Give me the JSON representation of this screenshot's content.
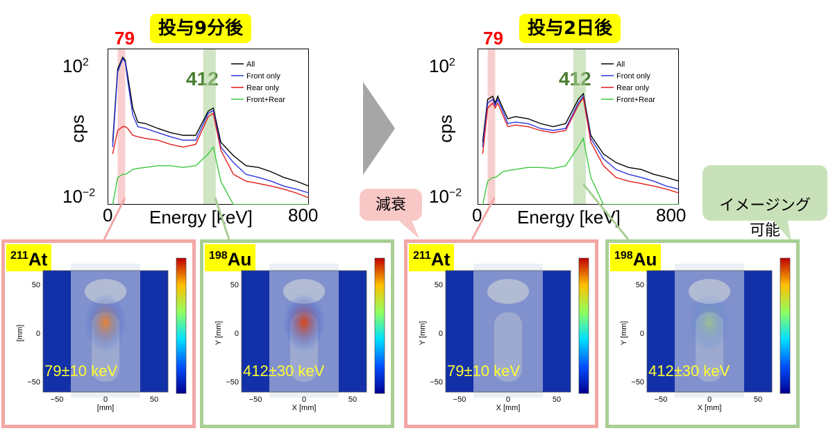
{
  "colors": {
    "all": "#000000",
    "front": "#2b36e0",
    "rear": "#e01a1a",
    "frontrear": "#3cc83c",
    "pink_band": "#f2a7a5",
    "green_band": "#a9cf93"
  },
  "left_block": {
    "time_label": "投与9分後",
    "peak_low": "79",
    "peak_high": "412"
  },
  "right_block": {
    "time_label": "投与2日後",
    "peak_low": "79",
    "peak_high": "412"
  },
  "arrow": "arrow-right-icon",
  "callouts": {
    "decay": "減衰",
    "imaging": "イメージング\n可能"
  },
  "panels": [
    {
      "isotope_mass": "211",
      "isotope": "At",
      "energy": "79±10 keV",
      "xlabel": "[mm]",
      "ylabel": "[mm]"
    },
    {
      "isotope_mass": "198",
      "isotope": "Au",
      "energy": "412±30 keV",
      "xlabel": "X [mm]",
      "ylabel": "Y [mm]"
    },
    {
      "isotope_mass": "211",
      "isotope": "At",
      "energy": "79±10 keV",
      "xlabel": "X [mm]",
      "ylabel": "Y [mm]"
    },
    {
      "isotope_mass": "198",
      "isotope": "Au",
      "energy": "412±30 keV",
      "xlabel": "X [mm]",
      "ylabel": "Y [mm]"
    }
  ],
  "chart_data": [
    {
      "type": "line",
      "title": "投与9分後",
      "xlabel": "Energy [keV]",
      "ylabel": "cps",
      "xlim": [
        0,
        800
      ],
      "ylim": [
        0.01,
        100
      ],
      "yscale": "log",
      "x_ticks": [
        "0",
        "800"
      ],
      "y_ticks": [
        "10^2",
        "10^-2"
      ],
      "legend_position": "top-right",
      "highlight_bands": [
        {
          "label": "79",
          "range": [
            40,
            70
          ]
        },
        {
          "label": "412",
          "range": [
            380,
            430
          ]
        }
      ],
      "x": [
        20,
        40,
        60,
        70,
        80,
        100,
        120,
        150,
        200,
        250,
        300,
        350,
        400,
        420,
        450,
        500,
        550,
        600,
        650,
        700,
        750,
        800
      ],
      "series": [
        {
          "name": "All",
          "values": [
            0.4,
            30,
            60,
            50,
            20,
            3,
            1.3,
            1.2,
            0.9,
            0.7,
            0.6,
            0.6,
            2.5,
            3.0,
            0.4,
            0.18,
            0.1,
            0.09,
            0.07,
            0.05,
            0.04,
            0.03
          ]
        },
        {
          "name": "Front only",
          "values": [
            0.3,
            25,
            55,
            45,
            15,
            2,
            1.0,
            0.9,
            0.7,
            0.55,
            0.45,
            0.45,
            2.2,
            2.6,
            0.3,
            0.12,
            0.06,
            0.05,
            0.04,
            0.03,
            0.025,
            0.02
          ]
        },
        {
          "name": "Rear only",
          "values": [
            0.2,
            0.8,
            1.0,
            1.0,
            0.9,
            0.6,
            0.55,
            0.5,
            0.45,
            0.35,
            0.3,
            0.35,
            1.8,
            2.2,
            0.25,
            0.06,
            0.04,
            0.035,
            0.03,
            0.025,
            0.02,
            0.015
          ]
        },
        {
          "name": "Front+Rear",
          "values": [
            0.01,
            0.05,
            0.06,
            0.06,
            0.065,
            0.08,
            0.085,
            0.09,
            0.1,
            0.1,
            0.09,
            0.1,
            0.2,
            0.3,
            0.04,
            0.01,
            0.01,
            0.01,
            0.01,
            0.01,
            0.01,
            0.01
          ]
        }
      ]
    },
    {
      "type": "line",
      "title": "投与2日後",
      "xlabel": "Energy [keV]",
      "ylabel": "cps",
      "xlim": [
        0,
        800
      ],
      "ylim": [
        0.01,
        100
      ],
      "yscale": "log",
      "x_ticks": [
        "0",
        "800"
      ],
      "y_ticks": [
        "10^2",
        "10^-2"
      ],
      "legend_position": "top-right",
      "highlight_bands": [
        {
          "label": "79",
          "range": [
            40,
            70
          ]
        },
        {
          "label": "412",
          "range": [
            380,
            430
          ]
        }
      ],
      "x": [
        20,
        40,
        60,
        70,
        80,
        100,
        120,
        150,
        200,
        250,
        300,
        350,
        400,
        420,
        450,
        500,
        550,
        600,
        650,
        700,
        750,
        800
      ],
      "series": [
        {
          "name": "All",
          "values": [
            0.4,
            5,
            6,
            4,
            6,
            3,
            1.6,
            1.8,
            1.6,
            1.2,
            1.0,
            1.2,
            5,
            7,
            0.6,
            0.2,
            0.12,
            0.09,
            0.08,
            0.06,
            0.05,
            0.04
          ]
        },
        {
          "name": "Front only",
          "values": [
            0.3,
            4,
            5,
            3.5,
            5,
            2.5,
            1.2,
            1.3,
            1.2,
            0.9,
            0.8,
            0.9,
            4,
            6,
            0.5,
            0.15,
            0.08,
            0.06,
            0.05,
            0.04,
            0.03,
            0.025
          ]
        },
        {
          "name": "Rear only",
          "values": [
            0.2,
            3,
            4,
            3,
            4,
            2,
            1.0,
            1.1,
            1.0,
            0.8,
            0.7,
            0.8,
            3.5,
            5.5,
            0.4,
            0.1,
            0.05,
            0.04,
            0.035,
            0.03,
            0.025,
            0.02
          ]
        },
        {
          "name": "Front+Rear",
          "values": [
            0.01,
            0.04,
            0.05,
            0.05,
            0.055,
            0.07,
            0.075,
            0.08,
            0.09,
            0.09,
            0.085,
            0.1,
            0.3,
            0.5,
            0.05,
            0.01,
            0.01,
            0.01,
            0.01,
            0.01,
            0.01,
            0.01
          ]
        }
      ]
    }
  ]
}
